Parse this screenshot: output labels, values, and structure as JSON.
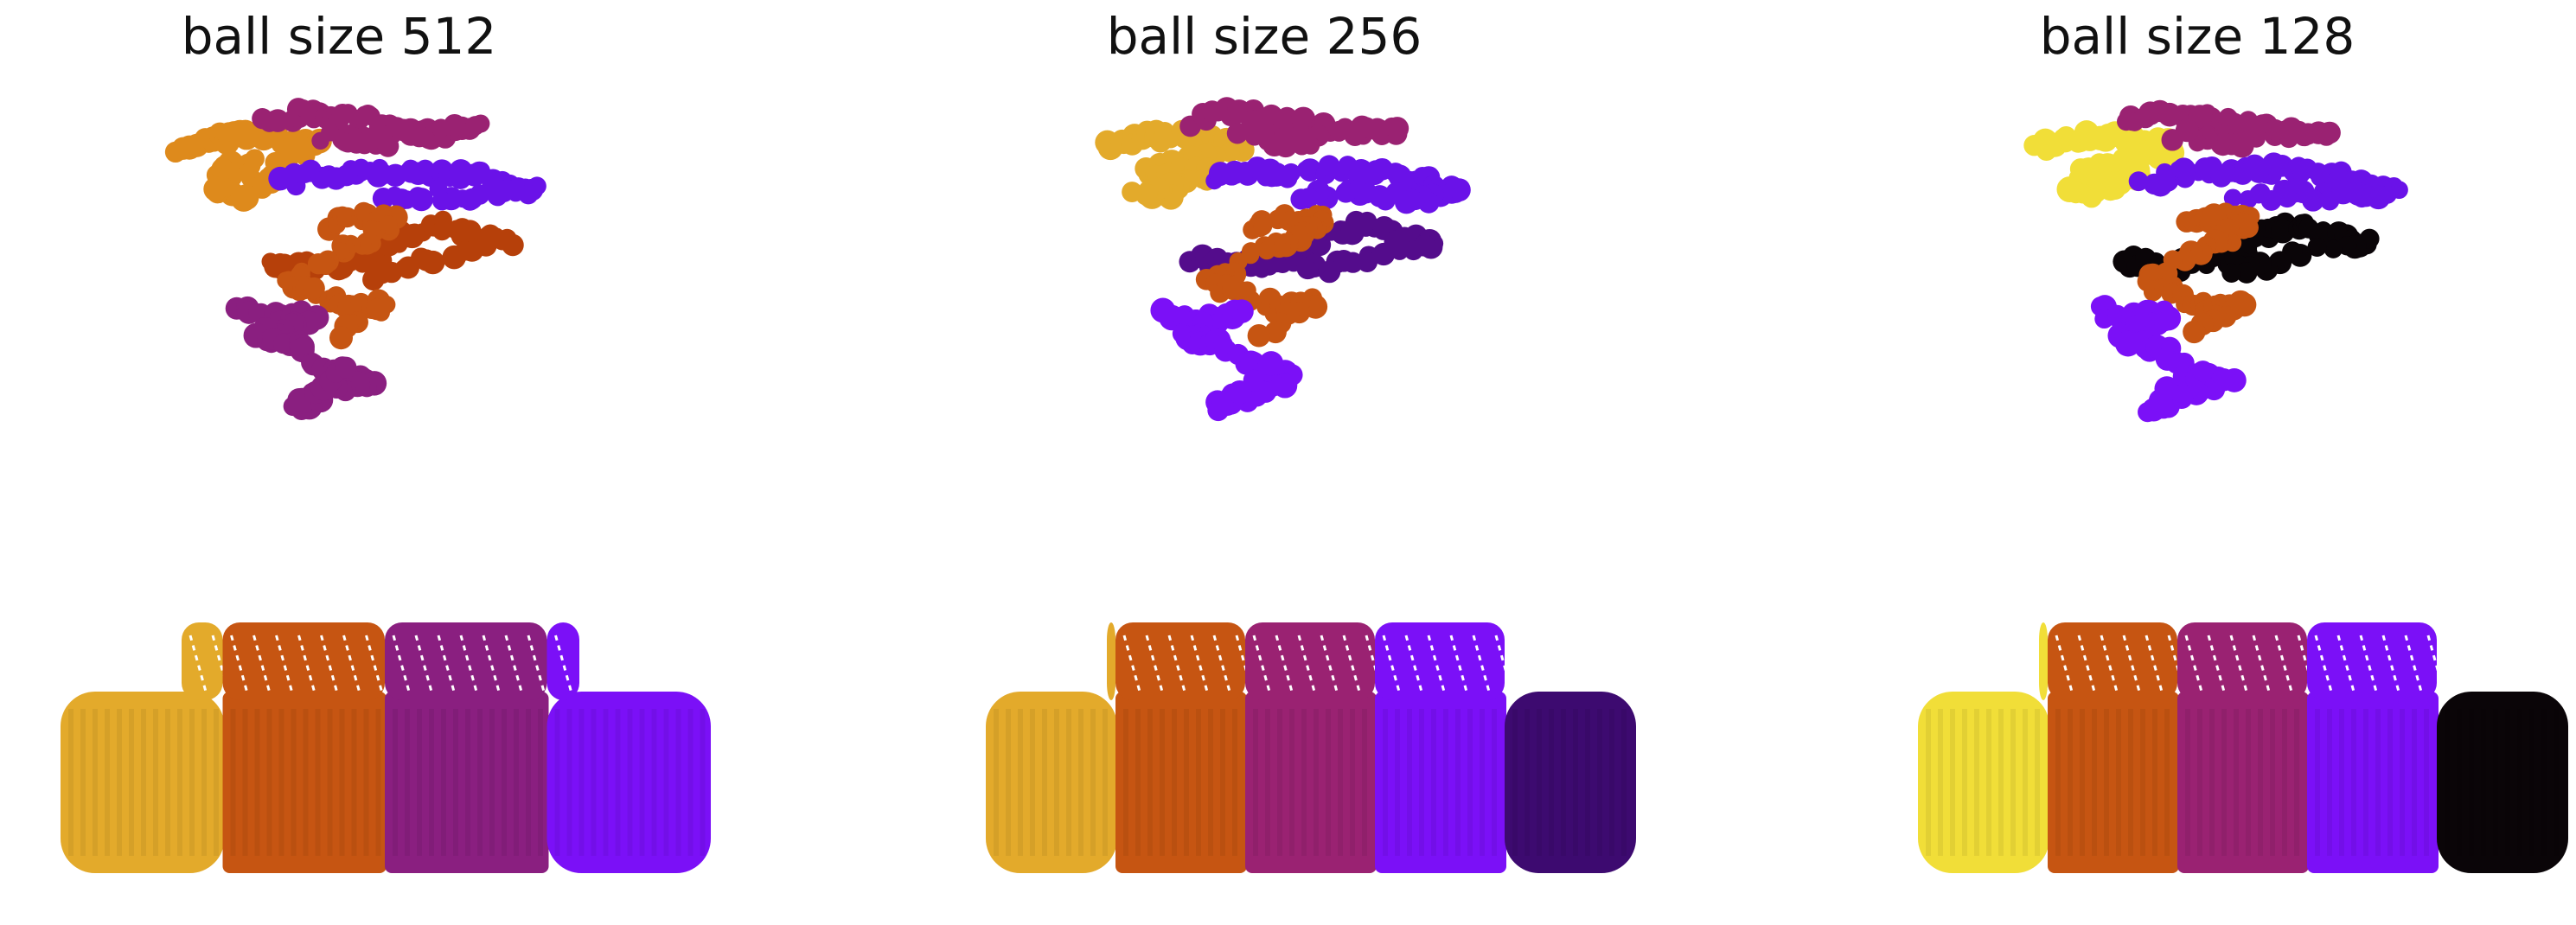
{
  "titles": [
    "ball size 512",
    "ball size 256",
    "ball size 128"
  ],
  "palette": {
    "black": "#0a0508",
    "deep_indigo": "#3d0a70",
    "dark_violet": "#540c8c",
    "blue_violet": "#6a12e8",
    "violet": "#7b10f7",
    "magenta_purple": "#8a1f80",
    "red_purple": "#9a2272",
    "rust": "#b6400a",
    "burnt_orange": "#c65512",
    "orange": "#de8a1c",
    "golden": "#e3aa2b",
    "yellow": "#f1de38"
  },
  "panels": [
    {
      "protein_parts": [
        "orange",
        "red_purple",
        "blue_violet",
        "rust",
        "burnt_orange",
        "magenta_purple"
      ],
      "car_parts": [
        "golden",
        "burnt_orange",
        "magenta_purple",
        "violet"
      ]
    },
    {
      "protein_parts": [
        "golden",
        "red_purple",
        "blue_violet",
        "dark_violet",
        "burnt_orange",
        "violet"
      ],
      "car_parts": [
        "golden",
        "burnt_orange",
        "red_purple",
        "violet",
        "deep_indigo"
      ]
    },
    {
      "protein_parts": [
        "yellow",
        "red_purple",
        "blue_violet",
        "black",
        "burnt_orange",
        "violet"
      ],
      "car_parts": [
        "yellow",
        "burnt_orange",
        "red_purple",
        "violet",
        "black"
      ]
    }
  ]
}
